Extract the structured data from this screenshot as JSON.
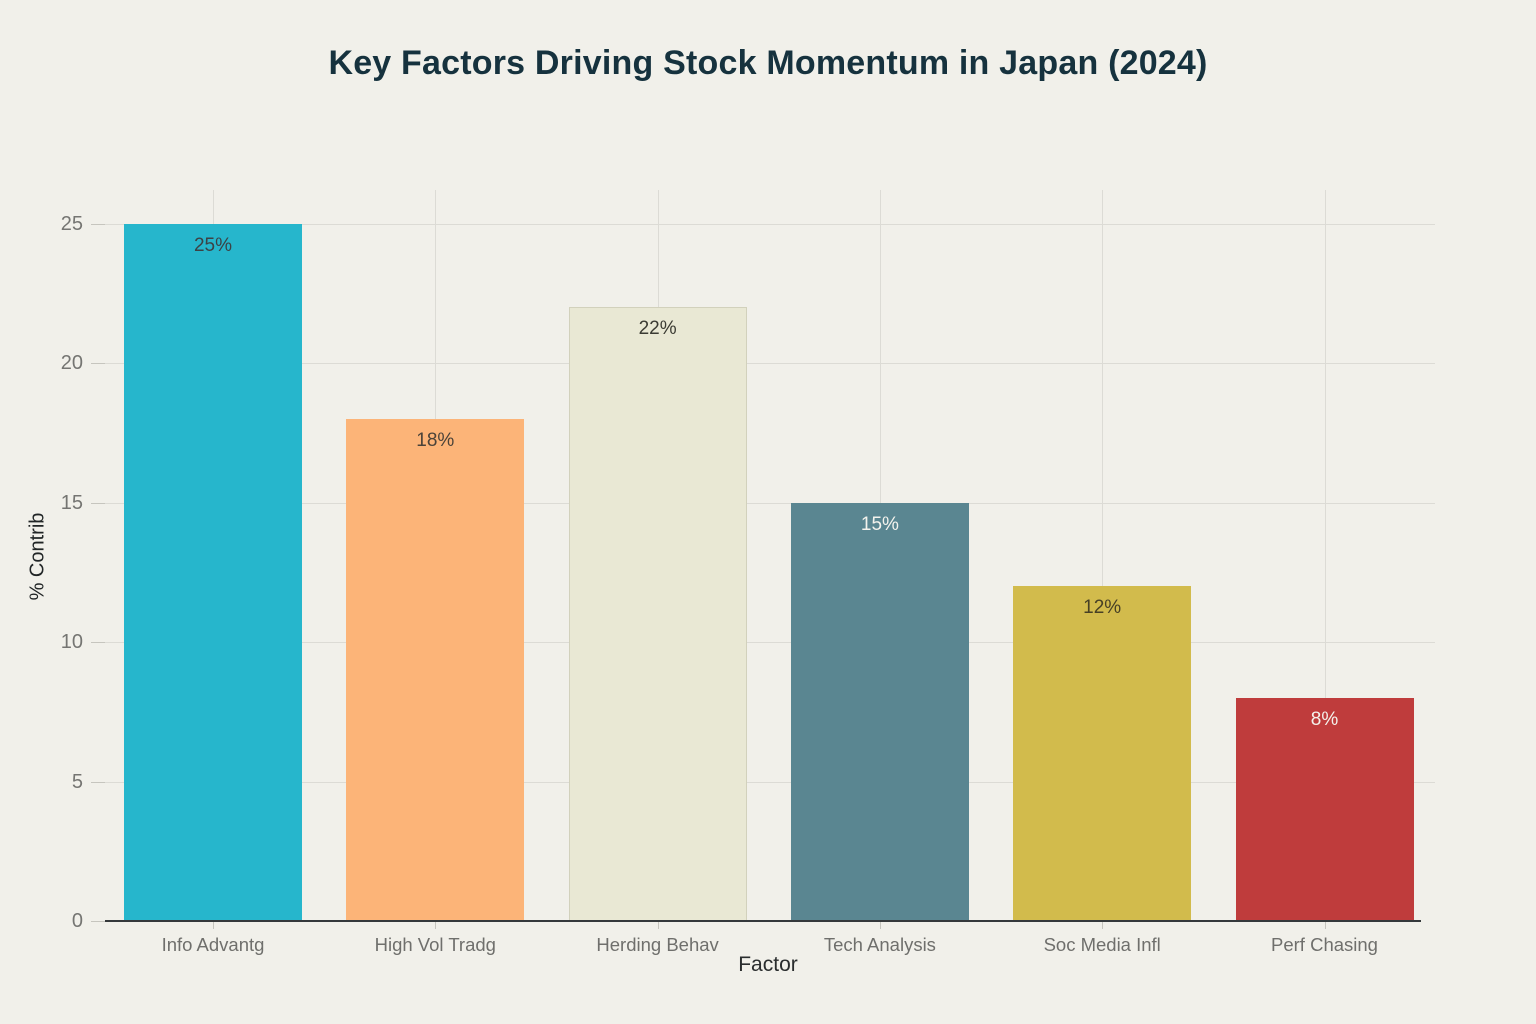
{
  "chart_data": {
    "type": "bar",
    "title": "Key Factors Driving Stock Momentum in Japan (2024)",
    "xlabel": "Factor",
    "ylabel": "% Contrib",
    "categories": [
      "Info Advantg",
      "High Vol Tradg",
      "Herding Behav",
      "Tech Analysis",
      "Soc Media Infl",
      "Perf Chasing"
    ],
    "values": [
      25,
      18,
      22,
      15,
      12,
      8
    ],
    "bar_labels": [
      "25%",
      "18%",
      "22%",
      "15%",
      "12%",
      "8%"
    ],
    "bar_colors": [
      "#26b6cc",
      "#fcb478",
      "#e9e8d4",
      "#5a8691",
      "#d2bb4c",
      "#bf3c3c"
    ],
    "bar_label_colors": [
      "#3c4245",
      "#4b4339",
      "#3b3b33",
      "#f4f3ed",
      "#474025",
      "#f4f3ed"
    ],
    "bar_bordered": [
      false,
      false,
      true,
      false,
      false,
      false
    ],
    "yticks": [
      0,
      5,
      10,
      15,
      20,
      25
    ],
    "ylim": [
      0,
      26.2
    ],
    "grid": true,
    "legend": "none",
    "background": "#f1f0ea",
    "accent_colors": {
      "gridline": "#dcdbd5",
      "axis_line": "#35393b",
      "tick_label": "#757572",
      "title": "#16323e"
    }
  }
}
